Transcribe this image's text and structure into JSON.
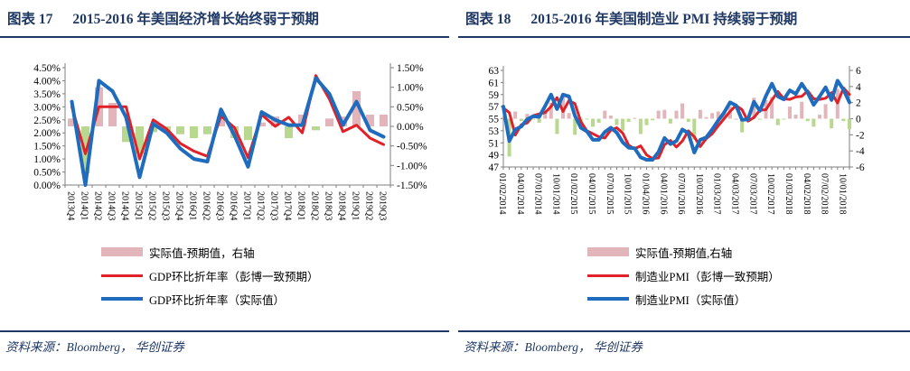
{
  "page": {
    "colors": {
      "navy": "#1F3864",
      "red_line": "#E02127",
      "blue_line": "#1F6CBF",
      "bar_positive_pink": "#E2B5BA",
      "bar_negative_green": "#B9D88F",
      "axis_gray": "#7F7F7F"
    },
    "panels": [
      {
        "title_index": "图表 17",
        "title_text": "2015-2016 年美国经济增长始终弱于预期",
        "legend": [
          {
            "label": "实际值-预期值，右轴"
          },
          {
            "label": "GDP环比折年率（彭博一致预期）"
          },
          {
            "label": "GDP环比折年率（实际值）"
          }
        ],
        "source_text": "资料来源：Bloomberg， 华创证券"
      },
      {
        "title_index": "图表 18",
        "title_text": "2015-2016 年美国制造业 PMI 持续弱于预期",
        "legend": [
          {
            "label": "实际值-预期值,右轴"
          },
          {
            "label": "制造业PMI（彭博一致预期）"
          },
          {
            "label": "制造业PMI（实际值）"
          }
        ],
        "source_text": "资料来源：Bloomberg， 华创证券"
      }
    ]
  },
  "chart_data": [
    {
      "type": "line+bar",
      "title": "2015-2016 年美国经济增长始终弱于预期",
      "grid": false,
      "legend_position": "bottom",
      "categories": [
        "2013Q4",
        "2014Q1",
        "2014Q2",
        "2014Q3",
        "2014Q4",
        "2015Q1",
        "2015Q2",
        "2015Q3",
        "2015Q4",
        "2016Q1",
        "2016Q2",
        "2016Q3",
        "2016Q4",
        "2017Q1",
        "2017Q2",
        "2017Q3",
        "2017Q4",
        "2018Q1",
        "2018Q2",
        "2018Q3",
        "2018Q4",
        "2019Q1",
        "2019Q2",
        "2019Q3"
      ],
      "left_axis": {
        "min": 0,
        "max": 4.5,
        "step": 0.5,
        "tick_labels": [
          "4.50%",
          "4.00%",
          "3.50%",
          "3.00%",
          "2.50%",
          "2.00%",
          "1.50%",
          "1.00%",
          "0.50%",
          "0.00%"
        ]
      },
      "right_axis": {
        "min": -1.5,
        "max": 1.5,
        "step": 0.5,
        "tick_labels": [
          "1.50%",
          "1.00%",
          "0.50%",
          "0.00%",
          "-0.50%",
          "-1.00%",
          "-1.50%"
        ]
      },
      "series": [
        {
          "name": "实际值-预期值，右轴",
          "style": "bar",
          "axis": "right",
          "color_positive": "#E2B5BA",
          "color_negative": "#B9D88F",
          "values": [
            0.2,
            -1.2,
            1.0,
            0.6,
            -0.4,
            -0.7,
            -0.15,
            -0.15,
            -0.2,
            -0.3,
            -0.2,
            0.25,
            -0.3,
            -0.35,
            0.1,
            0.25,
            -0.3,
            0.3,
            -0.1,
            0.2,
            0.25,
            0.9,
            0.3,
            0.3
          ]
        },
        {
          "name": "GDP环比折年率（彭博一致预期）",
          "style": "line",
          "axis": "left",
          "color": "#E02127",
          "stroke_width": 3,
          "values": [
            3.0,
            1.2,
            3.0,
            3.0,
            3.0,
            1.0,
            2.5,
            2.15,
            1.6,
            1.3,
            1.1,
            2.65,
            2.2,
            1.05,
            2.7,
            2.25,
            2.6,
            2.0,
            4.2,
            3.3,
            2.05,
            2.3,
            1.8,
            1.55
          ]
        },
        {
          "name": "GDP环比折年率（实际值）",
          "style": "line",
          "axis": "left",
          "color": "#1F6CBF",
          "stroke_width": 4,
          "values": [
            3.2,
            0.0,
            4.0,
            3.6,
            2.6,
            0.3,
            2.35,
            2.0,
            1.4,
            1.0,
            0.9,
            2.9,
            1.9,
            0.7,
            2.8,
            2.5,
            2.3,
            2.3,
            4.1,
            3.5,
            2.3,
            3.2,
            2.1,
            1.85
          ]
        }
      ]
    },
    {
      "type": "line+bar",
      "title": "2015-2016 年美国制造业 PMI 持续弱于预期",
      "grid": false,
      "legend_position": "bottom",
      "x_note": "monthly PMI releases, Dec-2013 PMI (released 01/02/2014) through Oct-2018 PMI; axis labels shown quarterly",
      "x_tick_labels": [
        "01/02/2014",
        "04/01/2014",
        "07/01/2014",
        "10/01/2014",
        "01/02/2015",
        "04/01/2015",
        "07/01/2015",
        "10/01/2015",
        "01/04/2016",
        "04/01/2016",
        "07/01/2016",
        "10/03/2016",
        "01/03/2017",
        "04/03/2017",
        "07/03/2017",
        "10/02/2017",
        "01/03/2018",
        "04/02/2018",
        "07/02/2018",
        "10/01/2018"
      ],
      "label_every": 3,
      "left_axis": {
        "min": 47,
        "max": 63,
        "step": 2,
        "tick_labels": [
          "63",
          "61",
          "59",
          "57",
          "55",
          "53",
          "51",
          "49",
          "47"
        ]
      },
      "right_axis": {
        "min": -6,
        "max": 6,
        "step": 2,
        "tick_labels": [
          "6",
          "4",
          "2",
          "0",
          "-2",
          "-4",
          "-6"
        ]
      },
      "series": [
        {
          "name": "实际值-预期值,右轴",
          "style": "bar",
          "axis": "right",
          "color_positive": "#E2B5BA",
          "color_negative": "#B9D88F",
          "values": [
            0.2,
            -4.7,
            0.9,
            -0.3,
            0.6,
            -0.1,
            -0.5,
            1.1,
            2.0,
            -1.9,
            2.8,
            0.7,
            -2.0,
            -1.0,
            -0.1,
            -1.0,
            -0.5,
            1.0,
            0.4,
            -0.8,
            -1.5,
            -0.4,
            0.1,
            -1.9,
            -0.8,
            -0.2,
            1.0,
            1.1,
            -0.6,
            1.0,
            1.9,
            -0.4,
            -2.6,
            1.1,
            0.2,
            0.7,
            0.9,
            1.0,
            1.5,
            0.0,
            -1.7,
            0.3,
            2.6,
            -0.1,
            2.3,
            2.7,
            -0.8,
            -0.1,
            1.5,
            0.5,
            2.1,
            -0.3,
            -1.0,
            0.5,
            1.8,
            -1.2,
            3.7,
            -0.3,
            -1.3
          ]
        },
        {
          "name": "制造业PMI（彭博一致预期）",
          "style": "line",
          "axis": "left",
          "color": "#E02127",
          "stroke_width": 3,
          "values": [
            56.8,
            56.0,
            52.3,
            54.0,
            54.3,
            55.5,
            55.8,
            56.0,
            57.0,
            58.5,
            56.2,
            58.0,
            57.5,
            54.5,
            53.0,
            52.5,
            52.0,
            51.8,
            53.1,
            53.5,
            52.6,
            50.6,
            50.0,
            50.5,
            49.0,
            48.4,
            48.5,
            50.7,
            51.4,
            50.3,
            51.3,
            53.0,
            52.0,
            50.4,
            51.7,
            52.5,
            53.8,
            55.0,
            56.2,
            57.2,
            56.5,
            54.6,
            55.2,
            56.4,
            56.5,
            58.1,
            59.5,
            58.3,
            58.2,
            58.6,
            58.7,
            59.6,
            58.3,
            58.2,
            58.4,
            59.3,
            57.6,
            60.1,
            59.0
          ]
        },
        {
          "name": "制造业PMI（实际值）",
          "style": "line",
          "axis": "left",
          "color": "#1F6CBF",
          "stroke_width": 4,
          "values": [
            57.0,
            51.3,
            53.2,
            53.7,
            54.9,
            55.4,
            55.3,
            57.1,
            59.0,
            56.6,
            59.0,
            58.7,
            55.5,
            53.5,
            52.9,
            51.5,
            51.5,
            52.8,
            53.5,
            52.7,
            51.1,
            50.2,
            50.1,
            48.6,
            48.2,
            48.2,
            49.5,
            51.8,
            50.8,
            51.3,
            53.2,
            52.6,
            49.4,
            51.5,
            51.9,
            53.2,
            54.7,
            56.0,
            57.7,
            57.2,
            54.8,
            54.9,
            57.8,
            56.3,
            58.8,
            60.8,
            58.7,
            58.2,
            59.7,
            59.1,
            60.8,
            59.3,
            57.3,
            58.7,
            60.2,
            58.1,
            61.3,
            59.8,
            57.7
          ]
        }
      ]
    }
  ]
}
